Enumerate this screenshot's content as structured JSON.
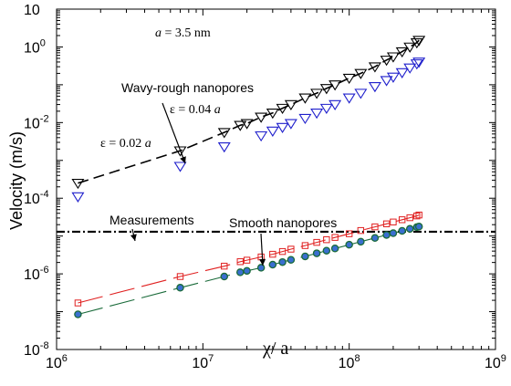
{
  "chart_data": {
    "type": "scatter",
    "x_scale": "log",
    "y_scale": "log",
    "xlim": [
      1000000,
      1000000000
    ],
    "ylim": [
      1e-08,
      10
    ],
    "xlabel": "χ/ a",
    "ylabel": "Velocity (m/s)",
    "x_ticks": [
      {
        "base": "10",
        "exp": "6",
        "value": 1000000
      },
      {
        "base": "10",
        "exp": "7",
        "value": 10000000
      },
      {
        "base": "10",
        "exp": "8",
        "value": 100000000
      },
      {
        "base": "10",
        "exp": "9",
        "value": 1000000000
      }
    ],
    "y_ticks": [
      {
        "base": "10",
        "exp": "-8",
        "value": 1e-08
      },
      {
        "base": "10",
        "exp": "-6",
        "value": 1e-06
      },
      {
        "base": "10",
        "exp": "-4",
        "value": 0.0001
      },
      {
        "base": "10",
        "exp": "-2",
        "value": 0.01
      },
      {
        "base": "10",
        "exp": "0",
        "value": 1
      },
      {
        "base": "10",
        "exp": "",
        "value": 10
      }
    ],
    "grid": false,
    "legend": "none",
    "series": [
      {
        "key": "rough-004",
        "marker": "triangle-down",
        "color": "#000000",
        "points": [
          [
            1400000,
            0.00025
          ],
          [
            7000000,
            0.0018
          ],
          [
            14000000,
            0.0055
          ],
          [
            18000000,
            0.0085
          ],
          [
            20000000,
            0.0095
          ],
          [
            25000000,
            0.014
          ],
          [
            30000000,
            0.018
          ],
          [
            35000000,
            0.024
          ],
          [
            40000000,
            0.03
          ],
          [
            50000000,
            0.045
          ],
          [
            60000000,
            0.06
          ],
          [
            70000000,
            0.08
          ],
          [
            80000000,
            0.1
          ],
          [
            100000000,
            0.15
          ],
          [
            120000000,
            0.2
          ],
          [
            150000000,
            0.3
          ],
          [
            180000000,
            0.45
          ],
          [
            200000000,
            0.55
          ],
          [
            230000000,
            0.75
          ],
          [
            260000000,
            1.0
          ],
          [
            290000000,
            1.3
          ],
          [
            300000000,
            1.5
          ]
        ]
      },
      {
        "key": "rough-002",
        "marker": "triangle-down",
        "color": "#1f1fcc",
        "points": [
          [
            1400000,
            0.00011
          ],
          [
            7000000,
            0.0007
          ],
          [
            14000000,
            0.0023
          ],
          [
            25000000,
            0.0045
          ],
          [
            30000000,
            0.006
          ],
          [
            35000000,
            0.0075
          ],
          [
            40000000,
            0.0095
          ],
          [
            50000000,
            0.013
          ],
          [
            60000000,
            0.018
          ],
          [
            70000000,
            0.024
          ],
          [
            80000000,
            0.03
          ],
          [
            100000000,
            0.045
          ],
          [
            120000000,
            0.06
          ],
          [
            150000000,
            0.09
          ],
          [
            180000000,
            0.13
          ],
          [
            200000000,
            0.16
          ],
          [
            230000000,
            0.21
          ],
          [
            260000000,
            0.28
          ],
          [
            290000000,
            0.36
          ],
          [
            300000000,
            0.4
          ]
        ]
      },
      {
        "key": "smooth-004",
        "marker": "square",
        "color": "#e02020",
        "points": [
          [
            1400000,
            1.7e-07
          ],
          [
            7000000,
            8.5e-07
          ],
          [
            14000000,
            1.6e-06
          ],
          [
            18000000,
            2.1e-06
          ],
          [
            20000000,
            2.3e-06
          ],
          [
            25000000,
            2.8e-06
          ],
          [
            30000000,
            3.3e-06
          ],
          [
            35000000,
            3.9e-06
          ],
          [
            40000000,
            4.5e-06
          ],
          [
            50000000,
            5.6e-06
          ],
          [
            60000000,
            6.8e-06
          ],
          [
            70000000,
            8e-06
          ],
          [
            80000000,
            9.2e-06
          ],
          [
            100000000,
            1.15e-05
          ],
          [
            120000000,
            1.4e-05
          ],
          [
            150000000,
            1.75e-05
          ],
          [
            180000000,
            2.1e-05
          ],
          [
            200000000,
            2.35e-05
          ],
          [
            230000000,
            2.7e-05
          ],
          [
            260000000,
            3.05e-05
          ],
          [
            290000000,
            3.4e-05
          ],
          [
            300000000,
            3.6e-05
          ]
        ]
      },
      {
        "key": "smooth-002",
        "marker": "circle",
        "color": "#1a6b3a",
        "points": [
          [
            1400000,
            8.5e-08
          ],
          [
            7000000,
            4.3e-07
          ],
          [
            14000000,
            8.5e-07
          ],
          [
            18000000,
            1.1e-06
          ],
          [
            20000000,
            1.2e-06
          ],
          [
            25000000,
            1.45e-06
          ],
          [
            30000000,
            1.75e-06
          ],
          [
            35000000,
            2.05e-06
          ],
          [
            40000000,
            2.35e-06
          ],
          [
            50000000,
            2.9e-06
          ],
          [
            60000000,
            3.5e-06
          ],
          [
            70000000,
            4.1e-06
          ],
          [
            80000000,
            4.7e-06
          ],
          [
            100000000,
            5.9e-06
          ],
          [
            120000000,
            7.1e-06
          ],
          [
            150000000,
            8.9e-06
          ],
          [
            180000000,
            1.07e-05
          ],
          [
            200000000,
            1.19e-05
          ],
          [
            230000000,
            1.37e-05
          ],
          [
            260000000,
            1.55e-05
          ],
          [
            290000000,
            1.72e-05
          ],
          [
            300000000,
            1.78e-05
          ]
        ]
      }
    ],
    "measurement_level": 1.3e-05,
    "annotations": {
      "a_value": {
        "sym": "a",
        "text": " = 3.5 nm"
      },
      "wavy": "Wavy-rough nanopores",
      "eps004": {
        "sym": "ε = 0.04",
        "a": "a"
      },
      "eps002": {
        "sym": "ε = 0.02",
        "a": "a"
      },
      "measurements": "Measurements",
      "smooth": "Smooth nanopores"
    }
  }
}
